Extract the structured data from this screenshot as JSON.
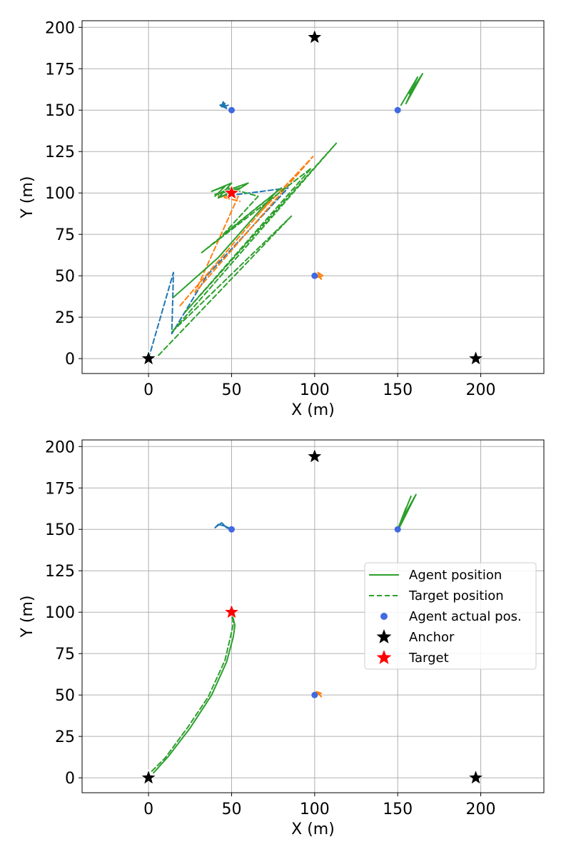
{
  "colors": {
    "blue": "#1f77b4",
    "orange": "#ff7f0e",
    "green": "#2ca02c",
    "agent_dot": "#4169e1",
    "anchor": "#000000",
    "target": "#ff0000",
    "grid": "#b0b0b0"
  },
  "chart_data": [
    {
      "type": "line",
      "xlabel": "X (m)",
      "ylabel": "Y (m)",
      "xlim": [
        -40,
        238
      ],
      "ylim": [
        -9,
        204
      ],
      "xticks": [
        0,
        50,
        100,
        150,
        200
      ],
      "yticks": [
        0,
        25,
        50,
        75,
        100,
        125,
        150,
        175,
        200
      ],
      "grid": true,
      "anchors": [
        [
          0,
          0
        ],
        [
          100,
          194
        ],
        [
          197,
          0
        ]
      ],
      "target": [
        50,
        100
      ],
      "agent_actual_positions": [
        [
          50,
          150
        ],
        [
          150,
          150
        ],
        [
          100,
          50
        ]
      ],
      "series": [
        {
          "color": "blue",
          "style": "solid",
          "points": [
            [
              44,
              152
            ],
            [
              46,
              154
            ],
            [
              43,
              153
            ],
            [
              47,
              151
            ],
            [
              45,
              155
            ],
            [
              44,
              152
            ],
            [
              48,
              153
            ]
          ]
        },
        {
          "color": "blue",
          "style": "dashed",
          "points": [
            [
              0,
              0
            ],
            [
              15,
              52
            ],
            [
              14,
              15
            ],
            [
              35,
              50
            ],
            [
              84,
              103
            ],
            [
              53,
              99
            ],
            [
              42,
              98
            ]
          ]
        },
        {
          "color": "orange",
          "style": "solid",
          "points": [
            [
              101,
              49
            ],
            [
              105,
              50
            ],
            [
              102,
              52
            ],
            [
              104,
              48
            ],
            [
              101,
              51
            ]
          ]
        },
        {
          "color": "orange",
          "style": "dashed",
          "points": [
            [
              19,
              32
            ],
            [
              73,
              95
            ],
            [
              67,
              88
            ],
            [
              99,
              122
            ],
            [
              28,
              40
            ],
            [
              54,
              98
            ],
            [
              42,
              98
            ],
            [
              55,
              95
            ]
          ]
        },
        {
          "color": "green",
          "style": "solid",
          "points": [
            [
              152,
              153
            ],
            [
              162,
              170
            ],
            [
              157,
              160
            ],
            [
              165,
              172
            ],
            [
              155,
              154
            ],
            [
              160,
              165
            ]
          ]
        },
        {
          "color": "green",
          "style": "solid",
          "points": [
            [
              40,
              98
            ],
            [
              46,
              104
            ],
            [
              38,
              101
            ],
            [
              50,
              106
            ],
            [
              42,
              97
            ],
            [
              55,
              103
            ],
            [
              44,
              100
            ],
            [
              40,
              99
            ],
            [
              60,
              106
            ],
            [
              48,
              98
            ]
          ]
        },
        {
          "color": "green",
          "style": "solid",
          "points": [
            [
              15,
              37
            ],
            [
              42,
              61
            ],
            [
              78,
              102
            ]
          ]
        },
        {
          "color": "green",
          "style": "dashed",
          "points": [
            [
              6,
              2
            ],
            [
              86,
              86
            ],
            [
              14,
              16
            ],
            [
              113,
              130
            ],
            [
              22,
              28
            ],
            [
              98,
              115
            ],
            [
              32,
              64
            ],
            [
              80,
              103
            ],
            [
              45,
              75
            ],
            [
              66,
              98
            ],
            [
              48,
              103
            ],
            [
              42,
              99
            ]
          ]
        }
      ]
    },
    {
      "type": "line",
      "xlabel": "X (m)",
      "ylabel": "Y (m)",
      "xlim": [
        -40,
        238
      ],
      "ylim": [
        -9,
        204
      ],
      "xticks": [
        0,
        50,
        100,
        150,
        200
      ],
      "yticks": [
        0,
        25,
        50,
        75,
        100,
        125,
        150,
        175,
        200
      ],
      "grid": true,
      "anchors": [
        [
          0,
          0
        ],
        [
          100,
          194
        ],
        [
          197,
          0
        ]
      ],
      "target": [
        50,
        100
      ],
      "agent_actual_positions": [
        [
          50,
          150
        ],
        [
          150,
          150
        ],
        [
          100,
          50
        ]
      ],
      "legend": {
        "placement": "center-right",
        "entries": [
          "Agent position",
          "Target position",
          "Agent actual pos.",
          "Anchor",
          "Target"
        ]
      },
      "series": [
        {
          "color": "blue",
          "style": "solid",
          "points": [
            [
              50,
              150
            ],
            [
              46,
              152
            ],
            [
              42,
              153
            ],
            [
              40,
              151
            ],
            [
              44,
              154
            ],
            [
              47,
              151
            ],
            [
              50,
              150
            ]
          ]
        },
        {
          "color": "orange",
          "style": "solid",
          "points": [
            [
              100,
              50
            ],
            [
              104,
              51
            ],
            [
              101,
              52
            ],
            [
              104,
              49
            ]
          ]
        },
        {
          "color": "green",
          "style": "solid",
          "points": [
            [
              150,
              150
            ],
            [
              158,
              170
            ],
            [
              152,
              155
            ],
            [
              161,
              171
            ],
            [
              151,
              151
            ],
            [
              155,
              163
            ],
            [
              150,
              150
            ]
          ]
        },
        {
          "color": "green",
          "style": "solid",
          "points": [
            [
              3,
              3
            ],
            [
              12,
              13
            ],
            [
              25,
              30
            ],
            [
              38,
              50
            ],
            [
              47,
              70
            ],
            [
              51,
              85
            ],
            [
              52,
              92
            ],
            [
              50,
              100
            ]
          ]
        },
        {
          "color": "green",
          "style": "dashed",
          "points": [
            [
              2,
              4
            ],
            [
              10,
              12
            ],
            [
              24,
              31
            ],
            [
              36,
              49
            ],
            [
              46,
              71
            ],
            [
              50,
              88
            ],
            [
              51,
              93
            ],
            [
              50,
              100
            ]
          ]
        }
      ]
    }
  ]
}
